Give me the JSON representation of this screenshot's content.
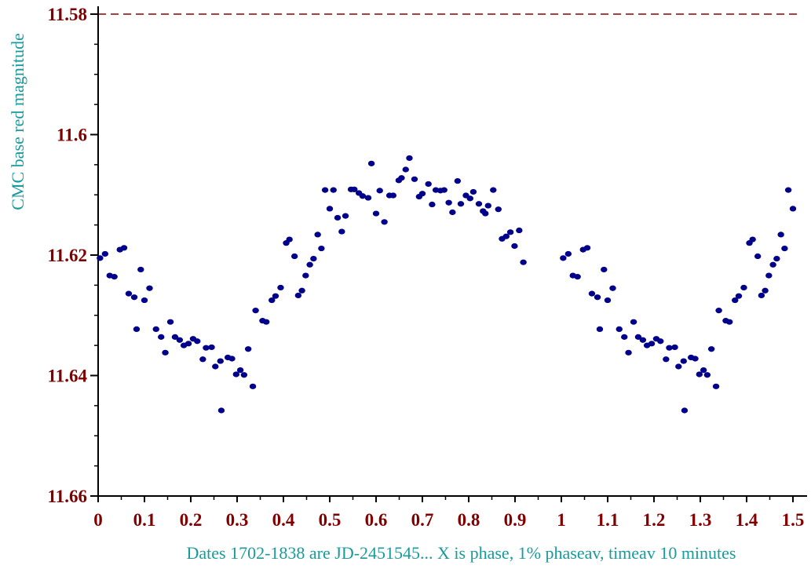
{
  "chart_data": {
    "type": "scatter",
    "title": "",
    "ylabel": "CMC base red magnitude",
    "xlabel": "Dates  1702-1838 are JD-2451545... X is phase, 1% phaseav, timeav  10 minutes",
    "xlim": [
      0,
      1.5
    ],
    "ylim": [
      11.58,
      11.66
    ],
    "y_inverted": true,
    "y_ticks": [
      "11.58",
      "11.6",
      "11.62",
      "11.64",
      "11.66"
    ],
    "x_ticks": [
      "0",
      "0.1",
      "0.2",
      "0.3",
      "0.4",
      "0.5",
      "0.6",
      "0.7",
      "0.8",
      "0.9",
      "1",
      "1.1",
      "1.2",
      "1.3",
      "1.4",
      "1.5"
    ],
    "reference_line_y": 11.58,
    "colors": {
      "points": "#00008b",
      "axis": "#000000",
      "tick_labels": "#800000",
      "axis_titles": "#1a9a9a",
      "reference_line": "#8b0000"
    },
    "series": [
      {
        "points": [
          [
            0.004,
            11.6205
          ],
          [
            0.015,
            11.6198
          ],
          [
            0.025,
            11.6234
          ],
          [
            0.035,
            11.6236
          ],
          [
            0.047,
            11.6191
          ],
          [
            0.056,
            11.6188
          ],
          [
            0.066,
            11.6264
          ],
          [
            0.078,
            11.627
          ],
          [
            0.083,
            11.6323
          ],
          [
            0.092,
            11.6224
          ],
          [
            0.1,
            11.6275
          ],
          [
            0.111,
            11.6255
          ],
          [
            0.125,
            11.6323
          ],
          [
            0.136,
            11.6336
          ],
          [
            0.145,
            11.6362
          ],
          [
            0.156,
            11.6311
          ],
          [
            0.166,
            11.6336
          ],
          [
            0.176,
            11.6341
          ],
          [
            0.185,
            11.635
          ],
          [
            0.195,
            11.6347
          ],
          [
            0.205,
            11.6339
          ],
          [
            0.214,
            11.6343
          ],
          [
            0.226,
            11.6373
          ],
          [
            0.233,
            11.6354
          ],
          [
            0.245,
            11.6353
          ],
          [
            0.253,
            11.6385
          ],
          [
            0.264,
            11.6376
          ],
          [
            0.266,
            11.6458
          ],
          [
            0.28,
            11.637
          ],
          [
            0.289,
            11.6372
          ],
          [
            0.298,
            11.6398
          ],
          [
            0.307,
            11.6391
          ],
          [
            0.315,
            11.6399
          ],
          [
            0.324,
            11.6356
          ],
          [
            0.334,
            11.6418
          ],
          [
            0.34,
            11.6292
          ],
          [
            0.355,
            11.6309
          ],
          [
            0.363,
            11.6311
          ],
          [
            0.375,
            11.6275
          ],
          [
            0.383,
            11.6268
          ],
          [
            0.394,
            11.6254
          ],
          [
            0.406,
            11.618
          ],
          [
            0.413,
            11.6174
          ],
          [
            0.424,
            11.6202
          ],
          [
            0.432,
            11.6267
          ],
          [
            0.44,
            11.6259
          ],
          [
            0.448,
            11.6234
          ],
          [
            0.457,
            11.6216
          ],
          [
            0.465,
            11.6206
          ],
          [
            0.474,
            11.6166
          ],
          [
            0.482,
            11.6189
          ],
          [
            0.49,
            11.6092
          ],
          [
            0.5,
            11.6123
          ],
          [
            0.508,
            11.6092
          ],
          [
            0.517,
            11.6138
          ],
          [
            0.526,
            11.6161
          ],
          [
            0.534,
            11.6135
          ],
          [
            0.546,
            11.6091
          ],
          [
            0.553,
            11.6091
          ],
          [
            0.563,
            11.6097
          ],
          [
            0.571,
            11.6102
          ],
          [
            0.583,
            11.6105
          ],
          [
            0.59,
            11.6048
          ],
          [
            0.6,
            11.6131
          ],
          [
            0.608,
            11.6093
          ],
          [
            0.618,
            11.6145
          ],
          [
            0.629,
            11.6101
          ],
          [
            0.637,
            11.6101
          ],
          [
            0.649,
            11.6076
          ],
          [
            0.655,
            11.6072
          ],
          [
            0.664,
            11.6058
          ],
          [
            0.672,
            11.6039
          ],
          [
            0.683,
            11.6074
          ],
          [
            0.693,
            11.6103
          ],
          [
            0.7,
            11.6098
          ],
          [
            0.713,
            11.6082
          ],
          [
            0.721,
            11.6116
          ],
          [
            0.729,
            11.6092
          ],
          [
            0.739,
            11.6093
          ],
          [
            0.747,
            11.6092
          ],
          [
            0.757,
            11.6113
          ],
          [
            0.765,
            11.6129
          ],
          [
            0.776,
            11.6077
          ],
          [
            0.783,
            11.6115
          ],
          [
            0.794,
            11.6101
          ],
          [
            0.803,
            11.6106
          ],
          [
            0.81,
            11.6095
          ],
          [
            0.822,
            11.6115
          ],
          [
            0.831,
            11.6127
          ],
          [
            0.836,
            11.6131
          ],
          [
            0.842,
            11.6118
          ],
          [
            0.853,
            11.6092
          ],
          [
            0.864,
            11.6124
          ],
          [
            0.872,
            11.6173
          ],
          [
            0.881,
            11.6169
          ],
          [
            0.89,
            11.6162
          ],
          [
            0.899,
            11.6185
          ],
          [
            0.909,
            11.6159
          ],
          [
            0.918,
            11.6212
          ]
        ]
      }
    ]
  }
}
